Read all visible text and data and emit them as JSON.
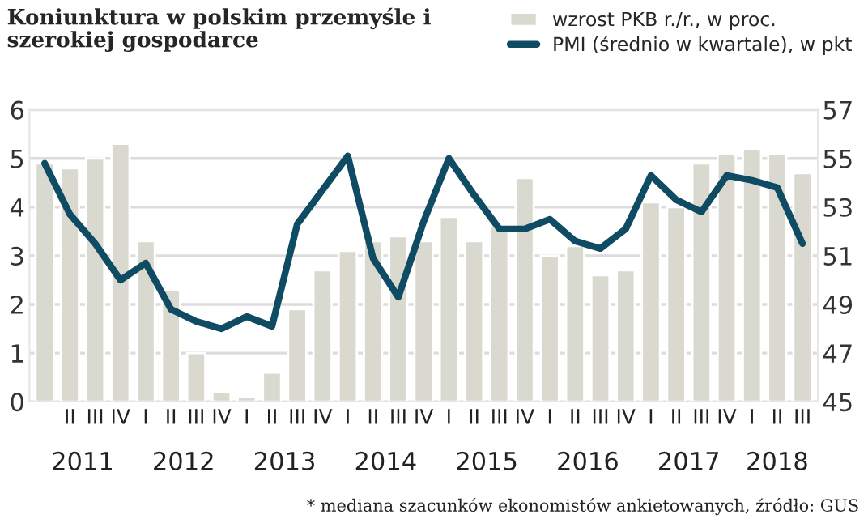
{
  "chart_data": {
    "type": "bar",
    "title": "Koniunktura w polskim przemyśle i szerokiej gospodarce",
    "categories": [
      null,
      "II",
      "III",
      "IV",
      "I",
      "II",
      "III",
      "IV",
      "I",
      "II",
      "III",
      "IV",
      "I",
      "II",
      "III",
      "IV",
      "I",
      "II",
      "III",
      "IV",
      "I",
      "II",
      "III",
      "IV",
      "I",
      "II",
      "III",
      "IV",
      "I",
      "II",
      "III"
    ],
    "series": [
      {
        "name": "wzrost PKB r./r., w proc.",
        "color": "#d9d9d0",
        "values": [
          4.9,
          4.8,
          5.0,
          5.3,
          3.3,
          2.3,
          1.0,
          0.2,
          0.1,
          0.6,
          1.9,
          2.7,
          3.1,
          3.3,
          3.4,
          3.3,
          3.8,
          3.3,
          3.6,
          4.6,
          3.0,
          3.2,
          2.6,
          2.7,
          4.1,
          4.0,
          4.9,
          5.1,
          5.2,
          5.1,
          4.7
        ]
      },
      {
        "name": "PMI (średnio w kwartale), w pkt",
        "type": "line",
        "axis": "y2",
        "color": "#0f4c64",
        "values": [
          54.8,
          52.7,
          51.5,
          50.0,
          50.7,
          48.8,
          48.3,
          48.0,
          48.5,
          48.1,
          52.3,
          53.7,
          55.1,
          50.9,
          49.3,
          52.4,
          55.0,
          53.5,
          52.1,
          52.1,
          52.5,
          51.6,
          51.3,
          52.1,
          54.3,
          53.3,
          52.8,
          54.3,
          54.1,
          53.8,
          51.5
        ]
      }
    ],
    "ylim": [
      0,
      6
    ],
    "yticks": [
      0,
      1,
      2,
      3,
      4,
      5,
      6
    ],
    "y2lim": [
      45,
      57
    ],
    "y2ticks": [
      45,
      47,
      49,
      51,
      53,
      55,
      57
    ],
    "grid": "y",
    "legend": "top right",
    "line_style": "solid",
    "marker": "none",
    "annotations": [
      "2011",
      "2012",
      "2013",
      "2014",
      "2015",
      "2016",
      "2017",
      "2018",
      "* mediana szacunków ekonomistów ankietowanych, źródło: GUS"
    ]
  }
}
